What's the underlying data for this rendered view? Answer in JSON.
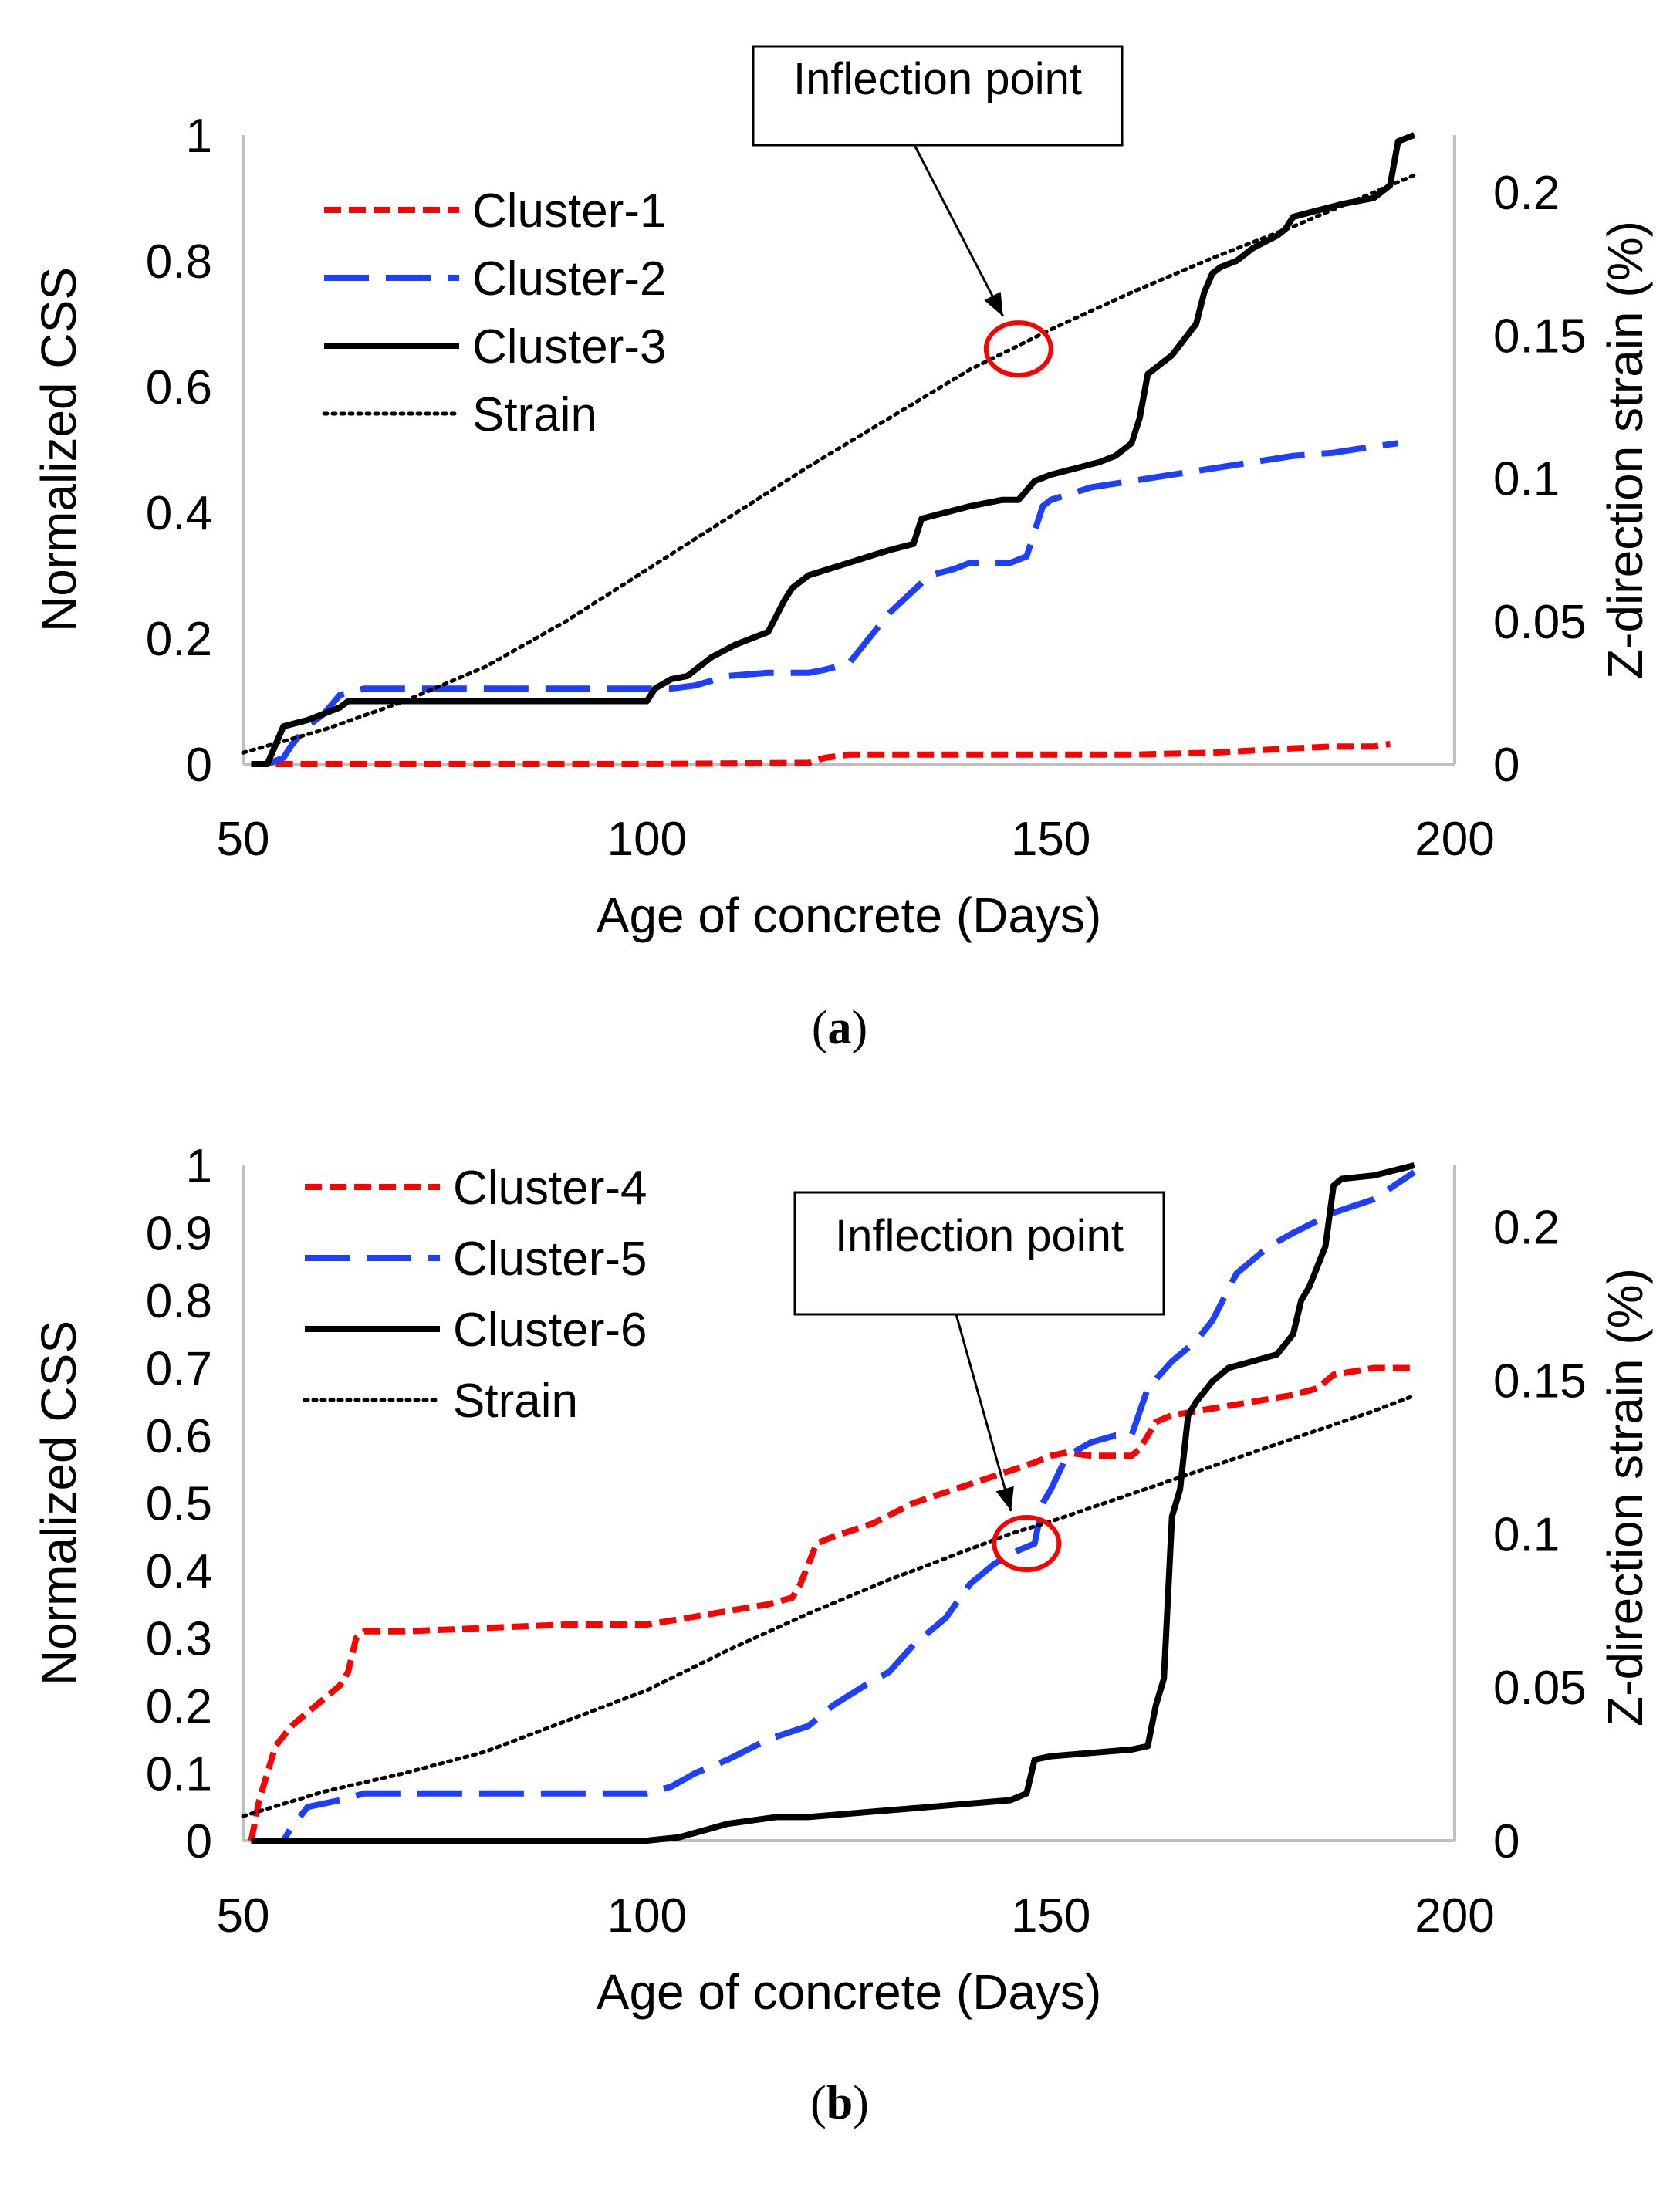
{
  "chart_data": [
    {
      "id": "a",
      "type": "line",
      "caption_label": "a",
      "xlabel": "Age of concrete (Days)",
      "ylabel": "Normalized CSS",
      "y2label": "Z-direction strain (%)",
      "xlim": [
        50,
        200
      ],
      "ylim": [
        0,
        1
      ],
      "y2lim": [
        0,
        0.22
      ],
      "x_ticks": [
        "50",
        "100",
        "150",
        "200"
      ],
      "y_ticks": [
        "0",
        "0.2",
        "0.4",
        "0.6",
        "0.8",
        "1"
      ],
      "y2_ticks": [
        "0",
        "0.05",
        "0.1",
        "0.15",
        "0.2"
      ],
      "annotation": {
        "text": "Inflection point",
        "x": 146,
        "y": 0.66
      },
      "legend_position": "top-left",
      "series": [
        {
          "name": "Cluster-1",
          "color": "#ff0000",
          "style": "short-dash",
          "axis": "left",
          "x": [
            51,
            60,
            80,
            100,
            120,
            122,
            125,
            140,
            150,
            160,
            170,
            180,
            185,
            190,
            192
          ],
          "y": [
            0.0,
            0.0,
            0.0,
            0.0,
            0.002,
            0.01,
            0.015,
            0.015,
            0.015,
            0.015,
            0.018,
            0.025,
            0.028,
            0.028,
            0.032
          ]
        },
        {
          "name": "Cluster-2",
          "color": "#1f3fff",
          "style": "long-dash",
          "axis": "left",
          "x": [
            53,
            55,
            56,
            58,
            60,
            62,
            65,
            70,
            80,
            90,
            100,
            103,
            106,
            110,
            115,
            120,
            122,
            125,
            130,
            135,
            138,
            140,
            145,
            147,
            149,
            150,
            155,
            160,
            165,
            170,
            175,
            180,
            185,
            190,
            193
          ],
          "y": [
            0.0,
            0.01,
            0.03,
            0.06,
            0.08,
            0.11,
            0.12,
            0.12,
            0.12,
            0.12,
            0.12,
            0.12,
            0.125,
            0.14,
            0.145,
            0.145,
            0.15,
            0.16,
            0.24,
            0.3,
            0.31,
            0.32,
            0.32,
            0.33,
            0.41,
            0.42,
            0.44,
            0.45,
            0.46,
            0.47,
            0.48,
            0.49,
            0.495,
            0.505,
            0.51
          ]
        },
        {
          "name": "Cluster-3",
          "color": "#000000",
          "style": "solid",
          "axis": "left",
          "x": [
            51,
            53,
            54,
            55,
            58,
            60,
            62,
            63,
            70,
            80,
            90,
            100,
            101,
            103,
            105,
            108,
            111,
            113,
            115,
            117,
            118,
            120,
            125,
            130,
            133,
            134,
            137,
            140,
            144,
            146,
            148,
            150,
            153,
            156,
            158,
            159,
            160,
            161,
            162,
            165,
            168,
            169,
            170,
            171,
            173,
            175,
            178,
            179,
            180,
            183,
            186,
            190,
            192,
            193,
            195
          ],
          "y": [
            0.0,
            0.0,
            0.03,
            0.06,
            0.07,
            0.08,
            0.09,
            0.1,
            0.1,
            0.1,
            0.1,
            0.1,
            0.12,
            0.135,
            0.14,
            0.17,
            0.19,
            0.2,
            0.21,
            0.26,
            0.28,
            0.3,
            0.32,
            0.34,
            0.35,
            0.39,
            0.4,
            0.41,
            0.42,
            0.42,
            0.45,
            0.46,
            0.47,
            0.48,
            0.49,
            0.5,
            0.51,
            0.55,
            0.62,
            0.65,
            0.7,
            0.75,
            0.78,
            0.79,
            0.8,
            0.82,
            0.84,
            0.85,
            0.87,
            0.88,
            0.89,
            0.9,
            0.92,
            0.99,
            1.0
          ]
        },
        {
          "name": "Strain",
          "color": "#000000",
          "style": "dotted",
          "axis": "right",
          "x": [
            50,
            55,
            60,
            70,
            80,
            90,
            100,
            110,
            120,
            130,
            140,
            150,
            160,
            170,
            180,
            190,
            195
          ],
          "y": [
            0.004,
            0.008,
            0.012,
            0.022,
            0.034,
            0.05,
            0.068,
            0.086,
            0.104,
            0.121,
            0.138,
            0.152,
            0.165,
            0.177,
            0.188,
            0.2,
            0.206
          ]
        }
      ]
    },
    {
      "id": "b",
      "type": "line",
      "caption_label": "b",
      "xlabel": "Age of concrete (Days)",
      "ylabel": "Normalized CSS",
      "y2label": "Z-direction strain (%)",
      "xlim": [
        50,
        200
      ],
      "ylim": [
        0,
        1
      ],
      "y2lim": [
        0,
        0.22
      ],
      "x_ticks": [
        "50",
        "100",
        "150",
        "200"
      ],
      "y_ticks": [
        "0",
        "0.1",
        "0.2",
        "0.3",
        "0.4",
        "0.5",
        "0.6",
        "0.7",
        "0.8",
        "0.9",
        "1"
      ],
      "y2_ticks": [
        "0",
        "0.05",
        "0.1",
        "0.15",
        "0.2"
      ],
      "annotation": {
        "text": "Inflection point",
        "x": 147,
        "y": 0.44
      },
      "legend_position": "top-left",
      "series": [
        {
          "name": "Cluster-4",
          "color": "#ff0000",
          "style": "short-dash",
          "axis": "left",
          "x": [
            51,
            52,
            53,
            54,
            56,
            58,
            60,
            62,
            63,
            64,
            65,
            70,
            80,
            90,
            100,
            105,
            110,
            115,
            118,
            119,
            120,
            121,
            123,
            128,
            133,
            138,
            143,
            148,
            150,
            152,
            155,
            158,
            160,
            161,
            162,
            163,
            165,
            170,
            175,
            180,
            183,
            185,
            190,
            195
          ],
          "y": [
            0.0,
            0.06,
            0.1,
            0.14,
            0.17,
            0.19,
            0.21,
            0.23,
            0.25,
            0.3,
            0.31,
            0.31,
            0.315,
            0.32,
            0.32,
            0.33,
            0.34,
            0.35,
            0.36,
            0.38,
            0.41,
            0.44,
            0.45,
            0.47,
            0.5,
            0.52,
            0.54,
            0.56,
            0.57,
            0.575,
            0.57,
            0.57,
            0.57,
            0.58,
            0.6,
            0.62,
            0.63,
            0.64,
            0.65,
            0.66,
            0.67,
            0.69,
            0.7,
            0.7
          ]
        },
        {
          "name": "Cluster-5",
          "color": "#1f3fff",
          "style": "long-dash",
          "axis": "left",
          "x": [
            51,
            55,
            56,
            58,
            62,
            65,
            70,
            80,
            90,
            100,
            103,
            106,
            110,
            115,
            120,
            123,
            127,
            130,
            133,
            137,
            140,
            143,
            146,
            148,
            149,
            150,
            152,
            155,
            158,
            160,
            162,
            165,
            168,
            170,
            173,
            177,
            180,
            185,
            190,
            195
          ],
          "y": [
            0.0,
            0.0,
            0.02,
            0.05,
            0.06,
            0.07,
            0.07,
            0.07,
            0.07,
            0.07,
            0.08,
            0.1,
            0.12,
            0.15,
            0.17,
            0.2,
            0.23,
            0.25,
            0.29,
            0.33,
            0.38,
            0.41,
            0.43,
            0.44,
            0.5,
            0.52,
            0.57,
            0.59,
            0.6,
            0.6,
            0.67,
            0.71,
            0.74,
            0.77,
            0.84,
            0.88,
            0.9,
            0.93,
            0.95,
            0.99
          ]
        },
        {
          "name": "Cluster-6",
          "color": "#000000",
          "style": "solid",
          "axis": "left",
          "x": [
            51,
            60,
            80,
            100,
            104,
            107,
            110,
            113,
            116,
            120,
            125,
            130,
            135,
            140,
            145,
            147,
            148,
            150,
            155,
            160,
            162,
            163,
            164,
            165,
            166,
            167,
            168,
            170,
            172,
            175,
            178,
            180,
            181,
            182,
            184,
            185,
            186,
            190,
            195
          ],
          "y": [
            0.0,
            0.0,
            0.0,
            0.0,
            0.005,
            0.015,
            0.025,
            0.03,
            0.035,
            0.035,
            0.04,
            0.045,
            0.05,
            0.055,
            0.06,
            0.07,
            0.12,
            0.125,
            0.13,
            0.135,
            0.14,
            0.2,
            0.24,
            0.48,
            0.52,
            0.63,
            0.65,
            0.68,
            0.7,
            0.71,
            0.72,
            0.75,
            0.8,
            0.82,
            0.88,
            0.97,
            0.98,
            0.985,
            1.0
          ]
        },
        {
          "name": "Strain",
          "color": "#000000",
          "style": "dotted",
          "axis": "right",
          "x": [
            50,
            55,
            60,
            70,
            80,
            90,
            100,
            110,
            120,
            130,
            140,
            145,
            150,
            160,
            170,
            180,
            190,
            195
          ],
          "y": [
            0.008,
            0.012,
            0.016,
            0.022,
            0.029,
            0.039,
            0.049,
            0.062,
            0.074,
            0.085,
            0.095,
            0.1,
            0.104,
            0.113,
            0.122,
            0.131,
            0.14,
            0.145
          ]
        }
      ]
    }
  ]
}
